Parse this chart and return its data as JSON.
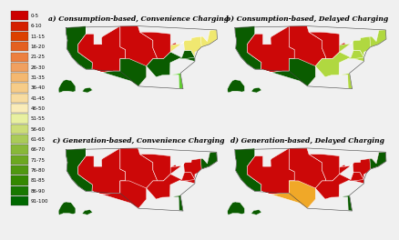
{
  "subtitles": [
    "a) Consumption-based, Convenience Charging",
    "b) Consumption-based, Delayed Charging",
    "c) Generation-based, Convenience Charging",
    "d) Generation-based, Delayed Charging"
  ],
  "legend_labels": [
    "0-5",
    "6-10",
    "11-15",
    "16-20",
    "21-25",
    "26-30",
    "31-35",
    "36-40",
    "41-45",
    "46-50",
    "51-55",
    "56-60",
    "61-65",
    "66-70",
    "71-75",
    "76-80",
    "81-85",
    "86-90",
    "91-100"
  ],
  "legend_colors": [
    "#CC0000",
    "#D42000",
    "#DC4000",
    "#E46020",
    "#EC8040",
    "#F0A060",
    "#F4B870",
    "#F6CC88",
    "#F8DCA0",
    "#FAECB8",
    "#E8F0A0",
    "#CCDD78",
    "#AACB58",
    "#88B838",
    "#6CA820",
    "#509810",
    "#348800",
    "#187800",
    "#006800"
  ],
  "background_color": "#f0f0f0",
  "map_bg": "#c8dce8",
  "map_outline": "#666666",
  "subtitle_fontsize": 5.5,
  "legend_fontsize": 4.0,
  "map_schemes": {
    "a": {
      "west": "#0a5c00",
      "mountain": "#cc0808",
      "plains_n": "#cc0808",
      "plains_s": "#0a5c00",
      "midwest": "#0a5c00",
      "great_lakes": "#cc0808",
      "southeast": "#0a5c00",
      "florida": "#60cc30",
      "mid_atlantic": "#0a5c00",
      "northeast": "#f0e870",
      "new_england": "#f0e870",
      "texas": "#0a5c00"
    },
    "b": {
      "west": "#0a5c00",
      "mountain": "#cc0808",
      "plains_n": "#cc0808",
      "plains_s": "#0a5c00",
      "midwest": "#b0d840",
      "great_lakes": "#cc0808",
      "southeast": "#b0d840",
      "florida": "#b0d840",
      "mid_atlantic": "#b0d840",
      "northeast": "#b0d840",
      "new_england": "#b0d840",
      "texas": "#0a5c00"
    },
    "c": {
      "west": "#0a5c00",
      "mountain": "#cc0808",
      "plains_n": "#cc0808",
      "plains_s": "#cc0808",
      "midwest": "#cc0808",
      "great_lakes": "#cc0808",
      "southeast": "#cc0808",
      "florida": "#0a5c00",
      "mid_atlantic": "#cc0808",
      "northeast": "#cc0808",
      "new_england": "#0a5c00",
      "texas": "#cc0808"
    },
    "d": {
      "west": "#0a5c00",
      "mountain": "#cc0808",
      "plains_n": "#cc0808",
      "plains_s": "#cc0808",
      "midwest": "#cc0808",
      "great_lakes": "#cc0808",
      "southeast": "#cc0808",
      "florida": "#0a5c00",
      "mid_atlantic": "#cc0808",
      "northeast": "#cc0808",
      "new_england": "#0a5c00",
      "texas": "#f0a828"
    }
  }
}
